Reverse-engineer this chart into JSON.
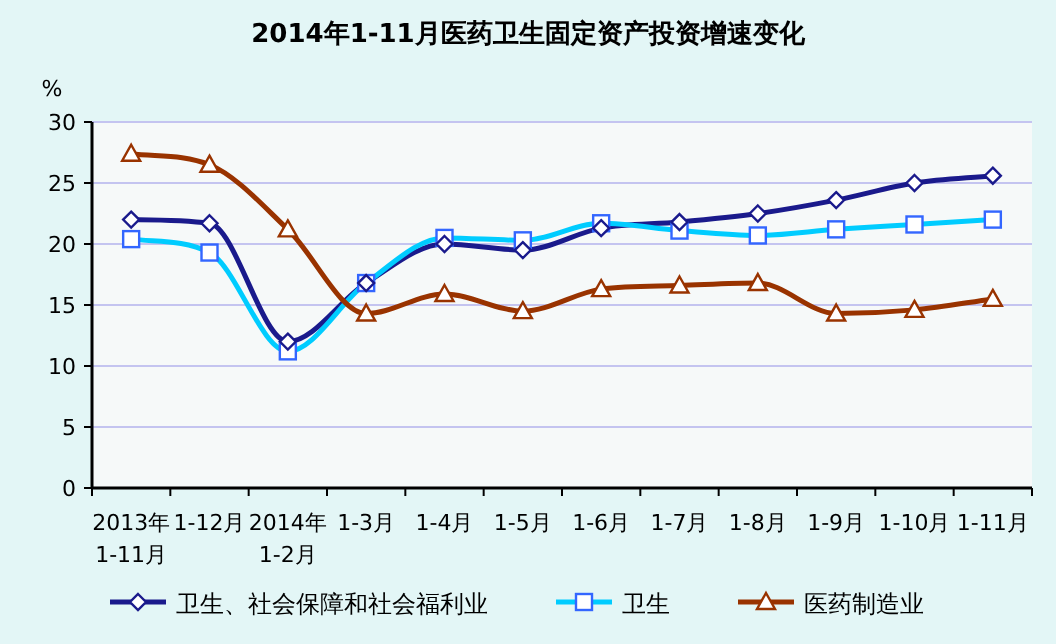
{
  "chart_data": {
    "type": "line",
    "title": "2014年1-11月医药卫生固定资产投资增速变化",
    "ylabel": "%",
    "categories": [
      "2013年1-11月",
      "1-12月",
      "2014年1-2月",
      "1-3月",
      "1-4月",
      "1-5月",
      "1-6月",
      "1-7月",
      "1-8月",
      "1-9月",
      "1-10月",
      "1-11月"
    ],
    "series": [
      {
        "name": "卫生、社会保障和社会福利业",
        "color": "#1a1a8c",
        "marker": "diamond",
        "values": [
          22.0,
          21.7,
          12.0,
          16.8,
          20.0,
          19.5,
          21.3,
          21.8,
          22.5,
          23.6,
          25.0,
          25.6
        ]
      },
      {
        "name": "卫生",
        "color": "#00ccff",
        "marker": "square",
        "values": [
          20.4,
          19.3,
          11.2,
          16.8,
          20.5,
          20.3,
          21.7,
          21.1,
          20.7,
          21.2,
          21.6,
          22.0
        ]
      },
      {
        "name": "医药制造业",
        "color": "#993300",
        "marker": "triangle",
        "values": [
          27.4,
          26.5,
          21.2,
          14.3,
          15.9,
          14.5,
          16.3,
          16.6,
          16.8,
          14.3,
          14.6,
          15.5
        ]
      }
    ],
    "ylim": [
      0,
      30
    ],
    "yticks": [
      0,
      5,
      10,
      15,
      20,
      25,
      30
    ],
    "grid": "y",
    "legend": "bottom"
  }
}
